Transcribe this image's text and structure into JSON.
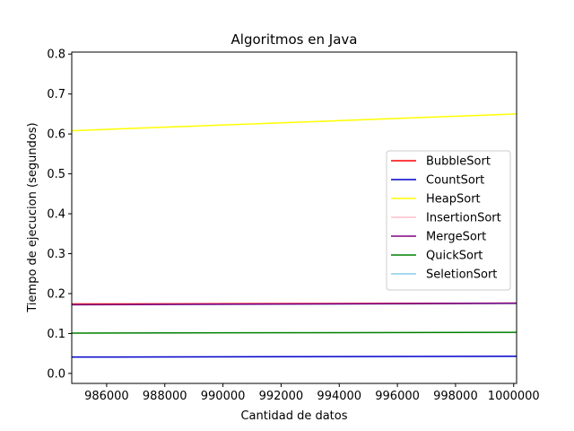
{
  "chart_data": {
    "type": "line",
    "title": "Algoritmos en Java",
    "xlabel": "Cantidad de datos",
    "ylabel": "Tiempo de ejecucion (segundos)",
    "xlim": [
      984800,
      1000100
    ],
    "ylim": [
      -0.025,
      0.805
    ],
    "x_ticks": [
      986000,
      988000,
      990000,
      992000,
      994000,
      996000,
      998000,
      1000000
    ],
    "x_tick_labels": [
      "986000",
      "988000",
      "990000",
      "992000",
      "994000",
      "996000",
      "998000",
      "1000000"
    ],
    "y_ticks": [
      0.0,
      0.1,
      0.2,
      0.3,
      0.4,
      0.5,
      0.6,
      0.7,
      0.8
    ],
    "y_tick_labels": [
      "0.0",
      "0.1",
      "0.2",
      "0.3",
      "0.4",
      "0.5",
      "0.6",
      "0.7",
      "0.8"
    ],
    "grid": false,
    "legend_position": "center-right",
    "x": [
      984800,
      1000100
    ],
    "series": [
      {
        "name": "BubbleSort",
        "color": "#ff0000",
        "values": [
          0.174,
          0.176
        ]
      },
      {
        "name": "CountSort",
        "color": "#0000cc",
        "values": [
          0.041,
          0.043
        ]
      },
      {
        "name": "HeapSort",
        "color": "#ffff00",
        "values": [
          0.608,
          0.65
        ]
      },
      {
        "name": "InsertionSort",
        "color": "#ffc0cb",
        "values": [
          0.172,
          0.174
        ]
      },
      {
        "name": "MergeSort",
        "color": "#800080",
        "values": [
          0.172,
          0.176
        ]
      },
      {
        "name": "QuickSort",
        "color": "#008000",
        "values": [
          0.101,
          0.103
        ]
      },
      {
        "name": "SeletionSort",
        "color": "#87ceeb",
        "values": [
          0.172,
          0.175
        ]
      }
    ],
    "draw_order": [
      "BubbleSort",
      "CountSort",
      "InsertionSort",
      "SeletionSort",
      "MergeSort",
      "QuickSort",
      "HeapSort"
    ]
  }
}
